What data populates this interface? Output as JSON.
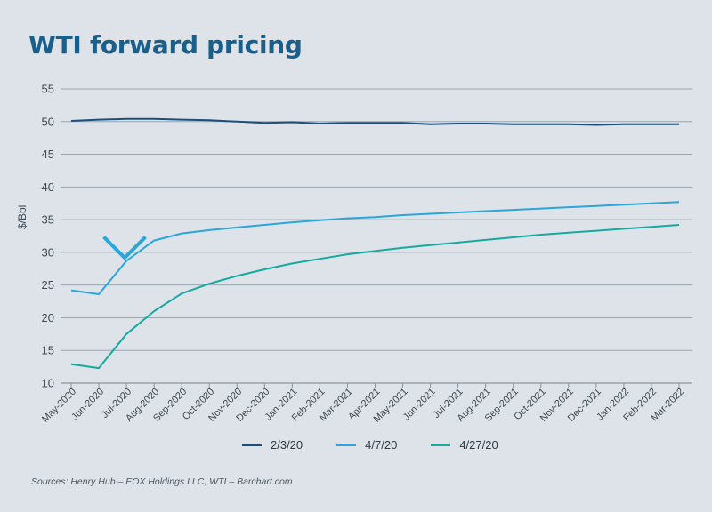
{
  "chart_data": {
    "type": "line",
    "title": "WTI forward pricing",
    "ylabel": "$/Bbl",
    "xlabel": "",
    "ylim": [
      10,
      55
    ],
    "yticks": [
      "55",
      "50",
      "45",
      "40",
      "35",
      "30",
      "25",
      "20",
      "15",
      "10"
    ],
    "grid": true,
    "legend_position": "bottom-center",
    "categories": [
      "May-2020",
      "Jun-2020",
      "Jul-2020",
      "Aug-2020",
      "Sep-2020",
      "Oct-2020",
      "Nov-2020",
      "Dec-2020",
      "Jan-2021",
      "Feb-2021",
      "Mar-2021",
      "Apr-2021",
      "May-2021",
      "Jun-2021",
      "Jul-2021",
      "Aug-2021",
      "Sep-2021",
      "Oct-2021",
      "Nov-2021",
      "Dec-2021",
      "Jan-2022",
      "Feb-2022",
      "Mar-2022"
    ],
    "series": [
      {
        "name": "2/3/20",
        "color": "#1b4f80",
        "values": [
          50.1,
          50.3,
          50.4,
          50.4,
          50.3,
          50.2,
          50.0,
          49.8,
          49.9,
          49.7,
          49.8,
          49.8,
          49.8,
          49.6,
          49.7,
          49.7,
          49.6,
          49.6,
          49.6,
          49.5,
          49.6,
          49.6,
          49.6
        ]
      },
      {
        "name": "4/7/20",
        "color": "#2ba5dc",
        "values": [
          24.2,
          23.6,
          28.7,
          31.8,
          32.9,
          33.4,
          33.8,
          34.2,
          34.6,
          34.9,
          35.2,
          35.4,
          35.7,
          35.9,
          36.1,
          36.3,
          36.5,
          36.7,
          36.9,
          37.1,
          37.3,
          37.5,
          37.7
        ]
      },
      {
        "name": "4/27/20",
        "color": "#16a9a0",
        "values": [
          12.9,
          12.3,
          17.5,
          21.0,
          23.7,
          25.2,
          26.4,
          27.4,
          28.3,
          29.0,
          29.7,
          30.2,
          30.7,
          31.1,
          31.5,
          31.9,
          32.3,
          32.7,
          33.0,
          33.3,
          33.6,
          33.9,
          34.2
        ]
      }
    ],
    "annotation": {
      "type": "down-arrow",
      "color": "#2aa7d9",
      "x_category": "Jul-2020"
    }
  },
  "source": "Sources: Henry Hub – EOX Holdings LLC, WTI – Barchart.com"
}
